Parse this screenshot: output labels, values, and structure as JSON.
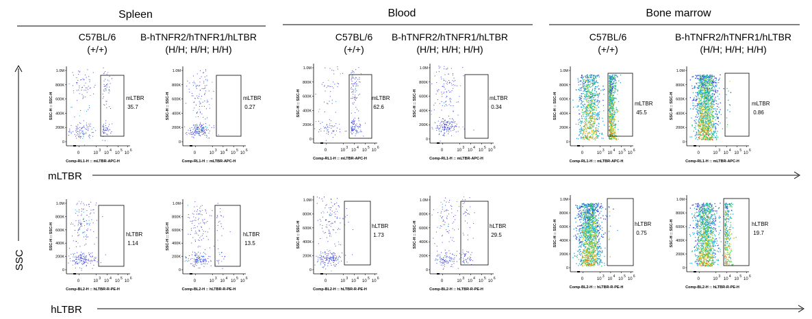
{
  "tissues": [
    "Spleen",
    "Blood",
    "Bone marrow"
  ],
  "genotypes": [
    {
      "name": "C57BL/6",
      "sub": "(+/+)"
    },
    {
      "name": "B-hTNFR2/hTNFR1/hLTBR",
      "sub": "(H/H; H/H; H/H)"
    }
  ],
  "row_labels": {
    "top": "mLTBR",
    "bottom": "hLTBR"
  },
  "y_axis_label": "SSC",
  "axis": {
    "y_title": "SSC-H :: SSC-H",
    "y_ticks": [
      "0",
      "200K",
      "400K",
      "600K",
      "800K",
      "1.0M"
    ],
    "x_ticks": [
      "0",
      "10",
      "10",
      "10",
      "10"
    ],
    "x_tick_exps": [
      "",
      "3",
      "4",
      "5",
      "6"
    ],
    "x_title_top": "Comp-RL1-H :: mLTBR-APC-H",
    "x_title_bottom": "Comp-BL2-H :: hLTBR-R-PE-H"
  },
  "chart_data": {
    "type": "scatter",
    "y_range": [
      0,
      1000000
    ],
    "panels": [
      {
        "row": "mLTBR",
        "tissue": "Spleen",
        "genotype": "C57BL/6 (+/+)",
        "gate": "mLTBR",
        "percent": "35.7"
      },
      {
        "row": "mLTBR",
        "tissue": "Spleen",
        "genotype": "B-hTNFR2/hTNFR1/hLTBR (H/H; H/H; H/H)",
        "gate": "mLTBR",
        "percent": "0.27"
      },
      {
        "row": "mLTBR",
        "tissue": "Blood",
        "genotype": "C57BL/6 (+/+)",
        "gate": "mLTBR",
        "percent": "62.6"
      },
      {
        "row": "mLTBR",
        "tissue": "Blood",
        "genotype": "B-hTNFR2/hTNFR1/hLTBR (H/H; H/H; H/H)",
        "gate": "mLTBR",
        "percent": "0.34"
      },
      {
        "row": "mLTBR",
        "tissue": "Bone marrow",
        "genotype": "C57BL/6 (+/+)",
        "gate": "mLTBR",
        "percent": "45.5"
      },
      {
        "row": "mLTBR",
        "tissue": "Bone marrow",
        "genotype": "B-hTNFR2/hTNFR1/hLTBR (H/H; H/H; H/H)",
        "gate": "mLTBR",
        "percent": "0.86"
      },
      {
        "row": "hLTBR",
        "tissue": "Spleen",
        "genotype": "C57BL/6 (+/+)",
        "gate": "hLTBR",
        "percent": "1.14"
      },
      {
        "row": "hLTBR",
        "tissue": "Spleen",
        "genotype": "B-hTNFR2/hTNFR1/hLTBR (H/H; H/H; H/H)",
        "gate": "hLTBR",
        "percent": "13.5"
      },
      {
        "row": "hLTBR",
        "tissue": "Blood",
        "genotype": "C57BL/6 (+/+)",
        "gate": "hLTBR",
        "percent": "1.73"
      },
      {
        "row": "hLTBR",
        "tissue": "Blood",
        "genotype": "B-hTNFR2/hTNFR1/hLTBR (H/H; H/H; H/H)",
        "gate": "hLTBR",
        "percent": "29.5"
      },
      {
        "row": "hLTBR",
        "tissue": "Bone marrow",
        "genotype": "C57BL/6 (+/+)",
        "gate": "hLTBR",
        "percent": "0.75"
      },
      {
        "row": "hLTBR",
        "tissue": "Bone marrow",
        "genotype": "B-hTNFR2/hTNFR1/hLTBR (H/H; H/H; H/H)",
        "gate": "hLTBR",
        "percent": "19.7"
      }
    ]
  }
}
